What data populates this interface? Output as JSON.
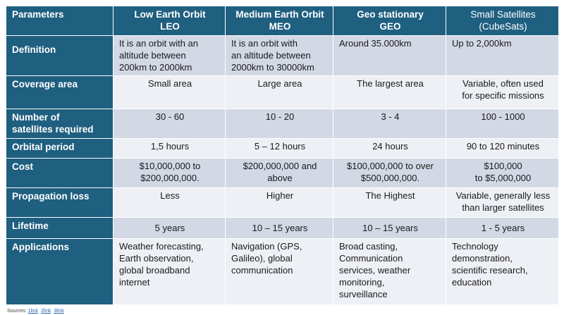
{
  "header": {
    "parameters": "Parameters",
    "leo": [
      "Low Earth Orbit",
      "LEO"
    ],
    "meo": [
      "Medium Earth Orbit",
      "MEO"
    ],
    "geo": [
      "Geo stationary",
      "GEO"
    ],
    "small": [
      "Small Satellites",
      "(CubeSats)"
    ]
  },
  "rows": [
    {
      "label": [
        "Definition"
      ],
      "leo": [
        "It is an orbit with an",
        "altitude between",
        "200km to 2000km"
      ],
      "meo": [
        "It is an orbit with",
        "an altitude between",
        "2000km to 30000km"
      ],
      "geo": [
        "Around 35.000km"
      ],
      "small": [
        "Up to 2,000km"
      ]
    },
    {
      "label": [
        "Coverage area"
      ],
      "leo": [
        "Small area"
      ],
      "meo": [
        "Large area"
      ],
      "geo": [
        "The largest area"
      ],
      "small": [
        "Variable, often used",
        "for specific missions"
      ]
    },
    {
      "label": [
        "Number of",
        "satellites required"
      ],
      "leo": [
        "30 - 60"
      ],
      "meo": [
        "10 - 20"
      ],
      "geo": [
        "3 - 4"
      ],
      "small": [
        "100 - 1000"
      ]
    },
    {
      "label": [
        "Orbital period"
      ],
      "leo": [
        "1,5 hours"
      ],
      "meo": [
        "5 – 12 hours"
      ],
      "geo": [
        "24 hours"
      ],
      "small": [
        "90 to 120 minutes"
      ]
    },
    {
      "label": [
        "Cost"
      ],
      "leo": [
        "$10,000,000 to",
        "$200,000,000."
      ],
      "meo": [
        "$200,000,000 and",
        "above"
      ],
      "geo": [
        "$100,000,000 to over",
        "$500,000,000."
      ],
      "small": [
        "$100,000",
        "to $5,000,000"
      ]
    },
    {
      "label": [
        "Propagation loss"
      ],
      "leo": [
        "Less"
      ],
      "meo": [
        "Higher"
      ],
      "geo": [
        "The Highest"
      ],
      "small": [
        "Variable, generally less",
        "than larger satellites"
      ]
    },
    {
      "label": [
        "Lifetime"
      ],
      "leo": [
        "5 years"
      ],
      "meo": [
        "10 – 15 years"
      ],
      "geo": [
        "10 – 15 years"
      ],
      "small": [
        "1 - 5 years"
      ]
    },
    {
      "label": [
        "Applications"
      ],
      "leo": [
        "Weather forecasting,",
        "Earth observation,",
        "global broadband",
        "internet"
      ],
      "meo": [
        "Navigation (GPS,",
        "Galileo), global",
        "communication"
      ],
      "geo": [
        "Broad casting,",
        "Communication",
        "services, weather",
        "monitoring,",
        "surveillance"
      ],
      "small": [
        "Technology",
        "demonstration,",
        "scientific research,",
        "education"
      ]
    }
  ],
  "sources": {
    "label": "Sources:",
    "links": [
      "1link",
      "2link",
      "3link"
    ]
  },
  "colors": {
    "header_bg": "#1f5f80",
    "row_light": "#eef0f6",
    "row_dark": "#d3d8e5",
    "link": "#2b61b8"
  }
}
